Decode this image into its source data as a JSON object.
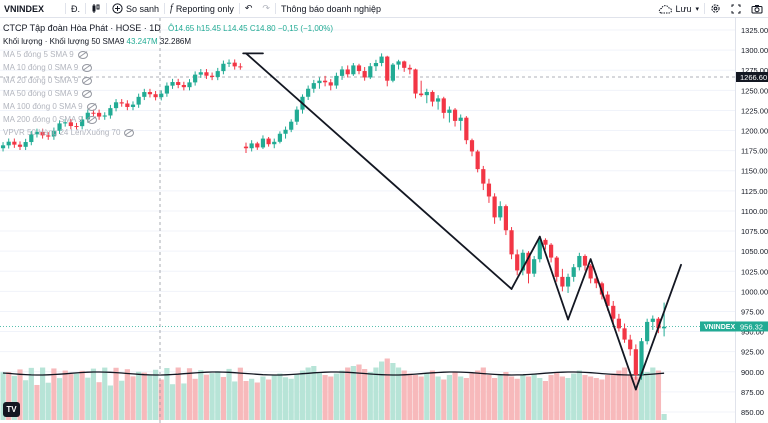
{
  "toolbar": {
    "symbol": "VNINDEX",
    "interval_icon": "Đ.",
    "compare_label": "So sanh",
    "indicator_label": "Reporting only",
    "alert_label": "Thông báo doanh nghiệp",
    "save_label": "Lưu"
  },
  "legend": {
    "title": "CTCP Tập đoàn Hòa Phát · HOSE · 1D",
    "ohlc": "Ô14.65  h15.45  L14.45  C14.80  −0,15 (−1,00%)",
    "volume_label": "Khối lượng · Khối lượng 50 SMA9",
    "volume_value1": "43.247M",
    "volume_value2": "32.286M",
    "indicators": [
      "MA 5 đóng 5 SMA 9",
      "MA 10 đóng 0 SMA 9",
      "MA 20 đóng 0 SMA 9",
      "MA 50 đóng 0 SMA 9",
      "MA 100 đóng 0 SMA 9",
      "MA 200 đóng 0 SMA 9",
      "VPVR 50 Hàng 24 Lên/Xuống 70"
    ]
  },
  "price_axis": {
    "ticks": [
      "1325.00",
      "1300.00",
      "1275.00",
      "1250.00",
      "1225.00",
      "1200.00",
      "1175.00",
      "1150.00",
      "1125.00",
      "1100.00",
      "1075.00",
      "1050.00",
      "1025.00",
      "1000.00",
      "975.00",
      "950.00",
      "925.00",
      "900.00",
      "875.00",
      "850.00"
    ],
    "crosshair_label": "1266.60",
    "last_symbol": "VNINDEX",
    "last_price": "956.32"
  },
  "chart_data": {
    "type": "candlestick",
    "y_range": [
      840,
      1335
    ],
    "crosshair_price": 1266.6,
    "last_price": 956.32,
    "candles": [
      [
        1180,
        1185,
        1172,
        1178
      ],
      [
        1178,
        1188,
        1174,
        1184
      ],
      [
        1184,
        1186,
        1176,
        1179
      ],
      [
        1179,
        1194,
        1177,
        1190
      ],
      [
        1190,
        1192,
        1180,
        1183
      ],
      [
        1183,
        1190,
        1178,
        1186
      ],
      [
        1186,
        1199,
        1184,
        1196
      ],
      [
        1196,
        1205,
        1190,
        1201
      ],
      [
        1201,
        1214,
        1198,
        1211
      ],
      [
        1211,
        1230,
        1207,
        1226
      ],
      [
        1226,
        1245,
        1221,
        1242
      ],
      [
        1242,
        1256,
        1238,
        1252
      ],
      [
        1252,
        1263,
        1247,
        1259
      ],
      [
        1259,
        1266,
        1252,
        1262
      ],
      [
        1262,
        1268,
        1255,
        1260
      ],
      [
        1260,
        1264,
        1250,
        1256
      ],
      [
        1256,
        1272,
        1252,
        1268
      ],
      [
        1268,
        1280,
        1263,
        1276
      ],
      [
        1276,
        1281,
        1266,
        1270
      ],
      [
        1270,
        1284,
        1268,
        1281
      ],
      [
        1281,
        1283,
        1270,
        1274
      ],
      [
        1274,
        1279,
        1262,
        1266
      ],
      [
        1266,
        1284,
        1264,
        1280
      ],
      [
        1280,
        1288,
        1274,
        1284
      ],
      [
        1284,
        1296,
        1280,
        1292
      ],
      [
        1292,
        1293,
        1255,
        1262
      ],
      [
        1262,
        1284,
        1260,
        1282
      ],
      [
        1282,
        1288,
        1276,
        1286
      ],
      [
        1286,
        1287,
        1273,
        1278
      ],
      [
        1278,
        1282,
        1270,
        1276
      ],
      [
        1276,
        1277,
        1240,
        1246
      ],
      [
        1246,
        1262,
        1242,
        1244
      ],
      [
        1244,
        1252,
        1234,
        1248
      ],
      [
        1248,
        1250,
        1230,
        1236
      ],
      [
        1236,
        1244,
        1226,
        1240
      ],
      [
        1240,
        1242,
        1215,
        1222
      ],
      [
        1222,
        1230,
        1210,
        1226
      ],
      [
        1226,
        1228,
        1205,
        1212
      ],
      [
        1212,
        1220,
        1200,
        1216
      ],
      [
        1216,
        1218,
        1183,
        1188
      ],
      [
        1188,
        1190,
        1168,
        1174
      ],
      [
        1174,
        1176,
        1148,
        1152
      ],
      [
        1152,
        1156,
        1126,
        1134
      ],
      [
        1134,
        1140,
        1110,
        1118
      ],
      [
        1118,
        1122,
        1084,
        1092
      ],
      [
        1092,
        1112,
        1088,
        1106
      ],
      [
        1106,
        1108,
        1070,
        1076
      ],
      [
        1076,
        1080,
        1040,
        1046
      ],
      [
        1046,
        1052,
        1020,
        1026
      ],
      [
        1026,
        1052,
        1020,
        1048
      ],
      [
        1048,
        1050,
        1010,
        1022
      ],
      [
        1022,
        1044,
        1018,
        1040
      ],
      [
        1040,
        1068,
        1036,
        1064
      ],
      [
        1064,
        1066,
        1052,
        1058
      ],
      [
        1058,
        1060,
        1036,
        1042
      ],
      [
        1042,
        1044,
        1012,
        1018
      ],
      [
        1018,
        1028,
        1000,
        1006
      ],
      [
        1006,
        1022,
        998,
        1018
      ],
      [
        1018,
        1034,
        1012,
        1030
      ],
      [
        1030,
        1048,
        1026,
        1044
      ],
      [
        1044,
        1046,
        1026,
        1032
      ],
      [
        1032,
        1034,
        1010,
        1016
      ],
      [
        1016,
        1022,
        1004,
        1010
      ],
      [
        1010,
        1012,
        990,
        996
      ],
      [
        996,
        1000,
        976,
        982
      ],
      [
        982,
        988,
        960,
        966
      ],
      [
        966,
        972,
        950,
        954
      ],
      [
        954,
        960,
        936,
        940
      ],
      [
        940,
        946,
        920,
        928
      ],
      [
        928,
        934,
        890,
        896
      ],
      [
        896,
        942,
        890,
        938
      ],
      [
        938,
        966,
        934,
        962
      ],
      [
        962,
        970,
        952,
        966
      ],
      [
        966,
        968,
        948,
        954
      ],
      [
        954,
        986,
        944,
        956
      ]
    ],
    "volumes": [
      0.52,
      0.55,
      0.5,
      0.58,
      0.54,
      0.6,
      0.62,
      0.57,
      0.55,
      0.61,
      0.66,
      0.7,
      0.72,
      0.64,
      0.6,
      0.58,
      0.62,
      0.66,
      0.7,
      0.72,
      0.74,
      0.68,
      0.64,
      0.7,
      0.78,
      0.82,
      0.76,
      0.7,
      0.66,
      0.62,
      0.6,
      0.58,
      0.62,
      0.66,
      0.58,
      0.54,
      0.6,
      0.64,
      0.58,
      0.56,
      0.62,
      0.66,
      0.7,
      0.6,
      0.56,
      0.6,
      0.64,
      0.58,
      0.55,
      0.6,
      0.58,
      0.62,
      0.56,
      0.52,
      0.6,
      0.64,
      0.58,
      0.56,
      0.62,
      0.66,
      0.6,
      0.58,
      0.56,
      0.54,
      0.6,
      0.62,
      0.66,
      0.7,
      0.6,
      0.58,
      0.62,
      0.64,
      0.7,
      0.66,
      0.08
    ],
    "trend_lines": [
      [
        [
          -0.5,
          1296
        ],
        [
          3,
          1296
        ]
      ],
      [
        [
          0,
          1296
        ],
        [
          47,
          1003
        ]
      ],
      [
        [
          47,
          1003
        ],
        [
          52,
          1068
        ]
      ],
      [
        [
          52,
          1068
        ],
        [
          57,
          965
        ]
      ],
      [
        [
          57,
          965
        ],
        [
          61,
          1040
        ]
      ],
      [
        [
          61,
          1040
        ],
        [
          69,
          878
        ]
      ],
      [
        [
          69,
          878
        ],
        [
          77,
          1033
        ]
      ]
    ]
  }
}
